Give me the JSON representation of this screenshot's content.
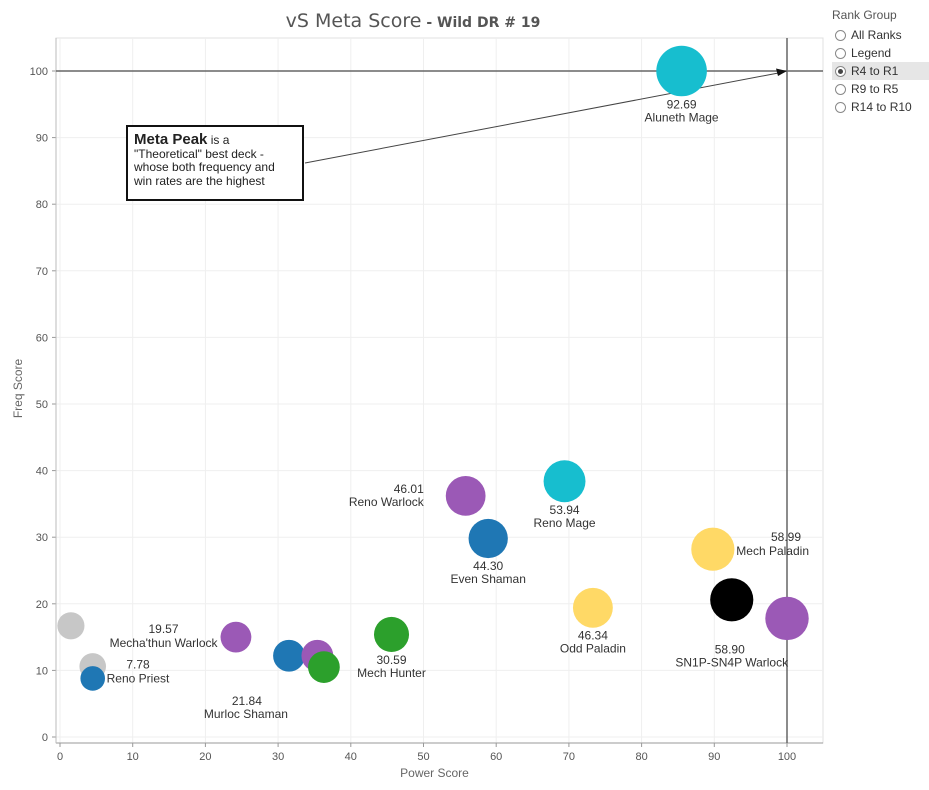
{
  "title": {
    "main": "vS Meta Score",
    "sub": " - Wild DR # 19"
  },
  "legend": {
    "title": "Rank Group",
    "options": [
      "All Ranks",
      "Legend",
      "R4 to R1",
      "R9 to R5",
      "R14 to R10"
    ],
    "selected": "R4 to R1"
  },
  "callout": {
    "bold": "Meta Peak",
    "text": " is a \"Theoretical\" best deck - whose both frequency and win rates are the highest"
  },
  "colors": {
    "purple": "#9b59b6",
    "blue": "#1f77b4",
    "green": "#2ca02c",
    "cyan": "#17becf",
    "yellow": "#ffd966",
    "black": "#000000",
    "gray": "#c7c7c7"
  },
  "chart_data": {
    "type": "scatter",
    "xlabel": "Power Score",
    "ylabel": "Freq Score",
    "xlim": [
      0,
      105
    ],
    "ylim": [
      0,
      105
    ],
    "xticks": [
      0,
      10,
      20,
      30,
      40,
      50,
      60,
      70,
      80,
      90,
      100
    ],
    "yticks": [
      0,
      10,
      20,
      30,
      40,
      50,
      60,
      70,
      80,
      90,
      100
    ],
    "grid": true,
    "reference_lines": {
      "x": 100,
      "y": 100
    },
    "points": [
      {
        "x": 85.5,
        "y": 100,
        "size": 92.69,
        "color": "cyan",
        "score": "92.69",
        "name": "Aluneth Mage"
      },
      {
        "x": 55.8,
        "y": 36.2,
        "size": 46.01,
        "color": "purple",
        "score": "46.01",
        "name": "Reno Warlock"
      },
      {
        "x": 69.4,
        "y": 38.4,
        "size": 53.94,
        "color": "cyan",
        "score": "53.94",
        "name": "Reno Mage"
      },
      {
        "x": 58.9,
        "y": 29.8,
        "size": 44.3,
        "color": "blue",
        "score": "44.30",
        "name": "Even Shaman"
      },
      {
        "x": 89.8,
        "y": 28.2,
        "size": 58.99,
        "color": "yellow",
        "score": "58.99",
        "name": "Mech Paladin"
      },
      {
        "x": 73.3,
        "y": 19.4,
        "size": 46.34,
        "color": "yellow",
        "score": "46.34",
        "name": "Odd Paladin"
      },
      {
        "x": 92.4,
        "y": 20.6,
        "size": 58.9,
        "color": "black",
        "score": "58.90",
        "name": "SN1P-SN4P Warlock"
      },
      {
        "x": 100,
        "y": 17.8,
        "size": 60.0,
        "color": "purple",
        "score": "",
        "name": ""
      },
      {
        "x": 45.6,
        "y": 15.4,
        "size": 30.59,
        "color": "green",
        "score": "30.59",
        "name": "Mech Hunter"
      },
      {
        "x": 24.2,
        "y": 15.0,
        "size": 19.57,
        "color": "purple",
        "score": "19.57",
        "name": "Mecha'thun Warlock"
      },
      {
        "x": 31.5,
        "y": 12.2,
        "size": 22.0,
        "color": "blue",
        "score": "",
        "name": ""
      },
      {
        "x": 36.3,
        "y": 10.5,
        "size": 21.84,
        "color": "green",
        "score": "21.84",
        "name": "Murloc Shaman"
      },
      {
        "x": 35.4,
        "y": 12.2,
        "size": 22.0,
        "color": "purple",
        "score": "",
        "name": ""
      },
      {
        "x": 4.5,
        "y": 8.8,
        "size": 7.78,
        "color": "blue",
        "score": "7.78",
        "name": "Reno Priest"
      },
      {
        "x": 4.5,
        "y": 10.6,
        "size": 11.0,
        "color": "gray",
        "score": "",
        "name": ""
      },
      {
        "x": 1.5,
        "y": 16.7,
        "size": 12.0,
        "color": "gray",
        "score": "",
        "name": ""
      }
    ]
  }
}
